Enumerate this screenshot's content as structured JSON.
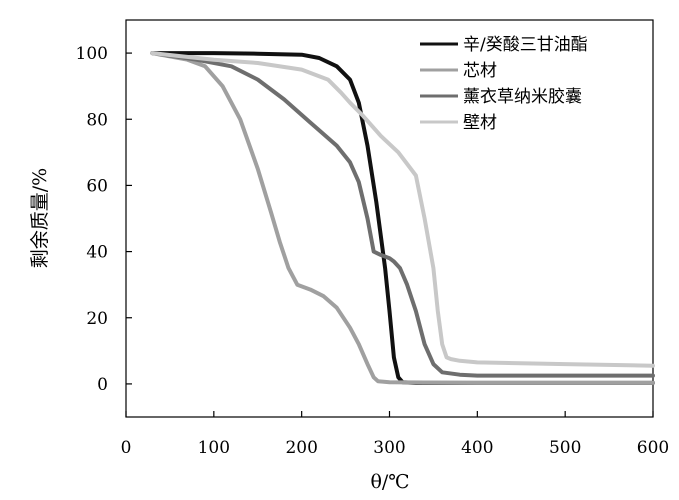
{
  "chart_data": {
    "type": "line",
    "title": "",
    "xlabel": "θ/℃",
    "ylabel": "剩余质量/%",
    "xlim": [
      0,
      600
    ],
    "ylim": [
      -10,
      110
    ],
    "xticks": [
      0,
      100,
      200,
      300,
      400,
      500,
      600
    ],
    "yticks": [
      0,
      20,
      40,
      60,
      80,
      100
    ],
    "grid": false,
    "legend_position": "top-right",
    "series": [
      {
        "name": "辛/癸酸三甘油酯",
        "color": "#111111",
        "x": [
          30,
          100,
          150,
          200,
          220,
          240,
          255,
          265,
          275,
          285,
          295,
          300,
          305,
          310,
          315,
          330,
          400,
          500,
          600
        ],
        "y": [
          100,
          100,
          99.8,
          99.5,
          98.5,
          96,
          92,
          85,
          72,
          55,
          35,
          22,
          8,
          2,
          0.5,
          0.3,
          0.3,
          0.3,
          0.3
        ]
      },
      {
        "name": "芯材",
        "color": "#a0a0a0",
        "x": [
          30,
          70,
          90,
          110,
          130,
          150,
          165,
          175,
          185,
          195,
          210,
          225,
          240,
          255,
          265,
          275,
          282,
          287,
          300,
          400,
          500,
          600
        ],
        "y": [
          100,
          98,
          96,
          90,
          80,
          65,
          52,
          43,
          35,
          30,
          28.5,
          26.5,
          23,
          17,
          12,
          6,
          2,
          0.8,
          0.5,
          0.3,
          0.3,
          0.3
        ]
      },
      {
        "name": "薰衣草纳米胶囊",
        "color": "#6e6e6e",
        "x": [
          30,
          80,
          120,
          150,
          180,
          210,
          240,
          255,
          265,
          275,
          282,
          290,
          300,
          305,
          312,
          320,
          330,
          340,
          350,
          360,
          380,
          400,
          500,
          600
        ],
        "y": [
          100,
          98,
          96,
          92,
          86,
          79,
          72,
          67,
          61,
          50,
          40,
          39,
          38,
          37,
          35,
          30,
          22,
          12,
          6,
          3.5,
          2.8,
          2.5,
          2.5,
          2.5
        ]
      },
      {
        "name": "壁材",
        "color": "#c8c8c8",
        "x": [
          30,
          100,
          150,
          200,
          230,
          245,
          255,
          270,
          290,
          310,
          330,
          340,
          350,
          355,
          360,
          365,
          370,
          380,
          400,
          500,
          600
        ],
        "y": [
          100,
          98,
          97,
          95,
          92,
          88,
          85,
          81,
          75,
          70,
          63,
          50,
          35,
          22,
          12,
          8,
          7.5,
          7,
          6.5,
          6,
          5.5
        ]
      }
    ]
  }
}
